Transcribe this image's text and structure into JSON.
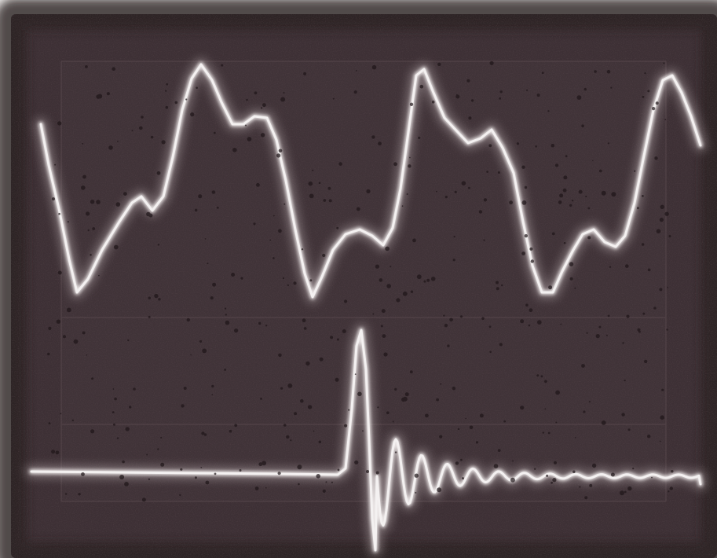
{
  "image": {
    "subject": "oscilloscope-screen-photo",
    "colors": {
      "border": "#f2f0ee",
      "screen": "#3d3035",
      "screen_dark": "#2f2428",
      "graticule": "#5a4a4f",
      "trace": "#e9e4e4",
      "trace_glow": "#bfb3b5",
      "speckle": "#1e1518"
    }
  }
}
